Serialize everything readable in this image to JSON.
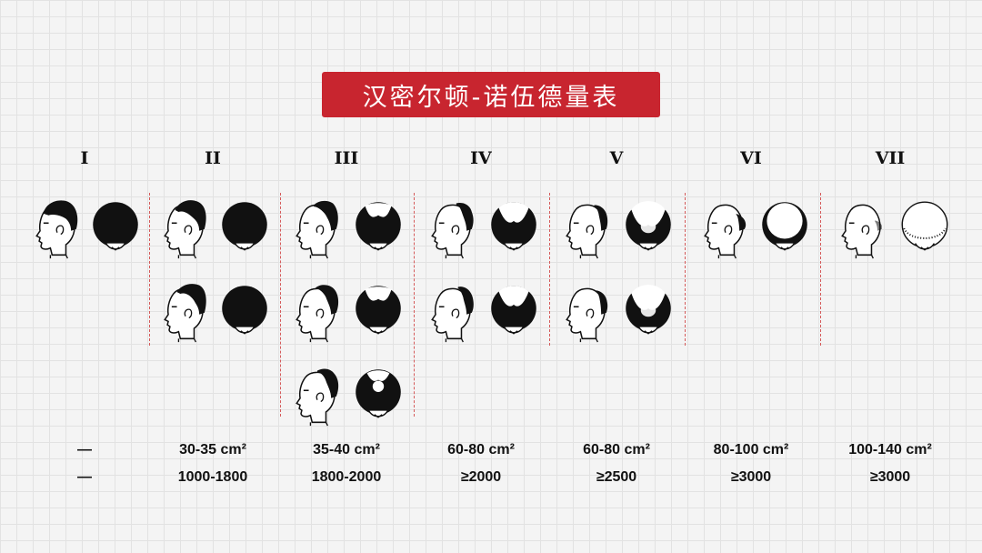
{
  "title": "汉密尔顿-诺伍德量表",
  "grades": [
    {
      "label": "I",
      "area": "—",
      "grafts": "—"
    },
    {
      "label": "II",
      "area": "30-35 cm²",
      "grafts": "1000-1800"
    },
    {
      "label": "III",
      "area": "35-40 cm²",
      "grafts": "1800-2000"
    },
    {
      "label": "IV",
      "area": "60-80 cm²",
      "grafts": "≥2000"
    },
    {
      "label": "V",
      "area": "60-80 cm²",
      "grafts": "≥2500"
    },
    {
      "label": "VI",
      "area": "80-100 cm²",
      "grafts": "≥3000"
    },
    {
      "label": "VII",
      "area": "100-140 cm²",
      "grafts": "≥3000"
    }
  ],
  "colors": {
    "title_bg": "#c8252f",
    "divider": "#d55a5a",
    "hair": "#111111"
  },
  "illustrations": [
    {
      "grade": "I",
      "side": "full",
      "top": "full"
    },
    {
      "grade": "II",
      "side": "temple",
      "top": "full"
    },
    {
      "grade": "II",
      "side": "temple-a",
      "top": "full"
    },
    {
      "grade": "III",
      "side": "deep-temple",
      "top": "m-shape"
    },
    {
      "grade": "III",
      "side": "deep-temple-a",
      "top": "m-shape"
    },
    {
      "grade": "III",
      "side": "vertex",
      "top": "vertex"
    },
    {
      "grade": "IV",
      "side": "crown",
      "top": "crown-spot"
    },
    {
      "grade": "IV",
      "side": "crown-a",
      "top": "crown-spot"
    },
    {
      "grade": "V",
      "side": "bridge",
      "top": "bridge"
    },
    {
      "grade": "V",
      "side": "bridge-a",
      "top": "bridge"
    },
    {
      "grade": "VI",
      "side": "horseshoe",
      "top": "horseshoe"
    },
    {
      "grade": "VII",
      "side": "bald",
      "top": "bald"
    }
  ]
}
